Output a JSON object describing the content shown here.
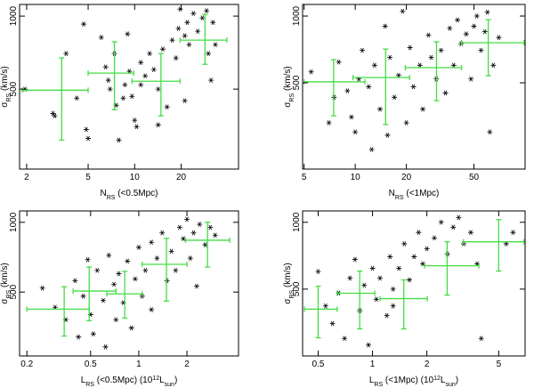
{
  "chart_data": [
    {
      "type": "scatter",
      "log_x": true,
      "log_y": true,
      "point_color": "#000000",
      "bin_color": "#44dd44",
      "xlabel": [
        {
          "text": "N"
        },
        {
          "text": "RS",
          "shift": "sub"
        },
        {
          "text": " (<0.5Mpc)"
        }
      ],
      "ylabel": [
        {
          "text": "σ"
        },
        {
          "text": "RS",
          "shift": "sub"
        },
        {
          "text": " (km/s)"
        }
      ],
      "xlim": [
        1.8,
        47
      ],
      "ylim": [
        234,
        1117
      ],
      "xticks": [
        2,
        5,
        10,
        20
      ],
      "yticks": [
        500,
        1000
      ],
      "x": [
        1.95,
        2.96,
        3.04,
        3.6,
        4.22,
        4.68,
        4.86,
        5.0,
        6.08,
        6.49,
        6.75,
        6.93,
        7.4,
        7.6,
        7.9,
        8.43,
        8.65,
        9.0,
        9.24,
        9.6,
        10.0,
        10.3,
        10.96,
        11.7,
        12.5,
        13.3,
        14.2,
        15.2,
        16.2,
        17.5,
        18.5,
        19.2,
        19.7,
        21.1,
        21.9,
        22.5,
        24.0,
        25.6,
        27.4,
        29.2,
        30.0,
        31.2,
        32.1,
        33.3,
        21.1,
        14.2,
        10.96
      ],
      "y": [
        500,
        397,
        388,
        701,
        459,
        927,
        341,
        313,
        817,
        617,
        544,
        500,
        701,
        429,
        308,
        459,
        521,
        844,
        592,
        467,
        372,
        350,
        644,
        567,
        701,
        602,
        356,
        731,
        422,
        796,
        672,
        889,
        1069,
        830,
        942,
        763,
        1026,
        866,
        983,
        1052,
        701,
        544,
        942,
        763,
        448,
        500,
        521
      ],
      "bins": {
        "x": [
          3.37,
          7.4,
          14.8,
          28.5
        ],
        "x_lo": [
          1.87,
          5.0,
          9.6,
          19.7
        ],
        "x_hi": [
          5.0,
          9.86,
          19.7,
          39.5
        ],
        "y": [
          495,
          582,
          539,
          796
        ],
        "y_lo": [
          308,
          411,
          388,
          633
        ],
        "y_hi": [
          672,
          783,
          701,
          1017
        ]
      }
    },
    {
      "type": "scatter",
      "log_x": true,
      "log_y": true,
      "point_color": "#000000",
      "bin_color": "#44dd44",
      "xlabel": [
        {
          "text": "N"
        },
        {
          "text": "RS",
          "shift": "sub"
        },
        {
          "text": " (<1Mpc)"
        }
      ],
      "ylabel": [
        {
          "text": "σ"
        },
        {
          "text": "RS",
          "shift": "sub"
        },
        {
          "text": " (km/s)"
        }
      ],
      "xlim": [
        4.9,
        100
      ],
      "ylim": [
        204,
        1128
      ],
      "xticks": [
        5,
        10,
        20,
        50
      ],
      "yticks": [
        500,
        1000
      ],
      "x": [
        5.5,
        7,
        7.5,
        8,
        9,
        9.5,
        10,
        10.5,
        11,
        12,
        12.5,
        13,
        14,
        15,
        15.5,
        16,
        17,
        18,
        19,
        20,
        21,
        22,
        24,
        25,
        27,
        28,
        30,
        32,
        34,
        36,
        38,
        40,
        42,
        45,
        48,
        50,
        52,
        55,
        58,
        60,
        62,
        65,
        70
      ],
      "y": [
        560,
        330,
        430,
        620,
        460,
        350,
        300,
        520,
        700,
        480,
        250,
        600,
        380,
        900,
        290,
        650,
        430,
        540,
        1050,
        330,
        720,
        480,
        600,
        380,
        820,
        650,
        520,
        700,
        450,
        880,
        600,
        960,
        750,
        830,
        520,
        900,
        1000,
        700,
        850,
        1040,
        300,
        600,
        800
      ],
      "bins": {
        "x": [
          7.46,
          15.1,
          30.1,
          60.7
        ],
        "x_lo": [
          5.0,
          9.7,
          19.7,
          42.2
        ],
        "x_hi": [
          11.4,
          20.9,
          42.2,
          98.6
        ],
        "y": [
          505,
          528,
          585,
          758
        ],
        "y_lo": [
          355,
          324,
          415,
          538
        ],
        "y_hi": [
          636,
          710,
          765,
          963
        ]
      }
    },
    {
      "type": "scatter",
      "log_x": true,
      "log_y": true,
      "point_color": "#000000",
      "bin_color": "#44dd44",
      "xlabel": [
        {
          "text": "L"
        },
        {
          "text": "RS",
          "shift": "sub"
        },
        {
          "text": " (<0.5Mpc) (10"
        },
        {
          "text": "12",
          "shift": "sup"
        },
        {
          "text": "L"
        },
        {
          "text": "sun",
          "shift": "sub"
        },
        {
          "text": ")"
        }
      ],
      "ylabel": [
        {
          "text": "σ"
        },
        {
          "text": "RS",
          "shift": "sub"
        },
        {
          "text": " (km/s)"
        }
      ],
      "xlim": [
        0.18,
        4.2
      ],
      "ylim": [
        265,
        1120
      ],
      "xticks": [
        0.2,
        0.5,
        1,
        2
      ],
      "yticks": [
        500,
        1000
      ],
      "x": [
        0.25,
        0.3,
        0.35,
        0.4,
        0.42,
        0.45,
        0.48,
        0.5,
        0.52,
        0.55,
        0.6,
        0.62,
        0.65,
        0.7,
        0.72,
        0.75,
        0.8,
        0.85,
        0.9,
        0.95,
        1.0,
        1.05,
        1.1,
        1.2,
        1.3,
        1.4,
        1.5,
        1.6,
        1.7,
        1.8,
        1.9,
        2.0,
        2.1,
        2.2,
        2.4,
        2.6,
        2.8,
        3.0,
        2.3,
        1.2
      ],
      "y": [
        520,
        430,
        380,
        560,
        320,
        480,
        690,
        400,
        330,
        620,
        460,
        290,
        720,
        540,
        380,
        600,
        450,
        680,
        350,
        570,
        780,
        480,
        620,
        820,
        700,
        900,
        560,
        750,
        620,
        950,
        850,
        1030,
        700,
        900,
        980,
        800,
        950,
        880,
        530,
        420
      ],
      "bins": {
        "x": [
          0.342,
          0.49,
          0.817,
          1.49,
          2.69
        ],
        "x_lo": [
          0.2,
          0.389,
          0.632,
          1.05,
          1.96
        ],
        "x_hi": [
          0.49,
          0.72,
          1.05,
          2.0,
          3.7
        ],
        "y": [
          422,
          505,
          491,
          659,
          837
        ],
        "y_lo": [
          323,
          376,
          386,
          457,
          641
        ],
        "y_hi": [
          527,
          641,
          614,
          853,
          1000
        ]
      }
    },
    {
      "type": "scatter",
      "log_x": true,
      "log_y": true,
      "point_color": "#000000",
      "bin_color": "#44dd44",
      "xlabel": [
        {
          "text": "L"
        },
        {
          "text": "RS",
          "shift": "sub"
        },
        {
          "text": " (<1Mpc) (10"
        },
        {
          "text": "12",
          "shift": "sup"
        },
        {
          "text": "L"
        },
        {
          "text": "sun",
          "shift": "sub"
        },
        {
          "text": ")"
        }
      ],
      "ylabel": [
        {
          "text": "σ"
        },
        {
          "text": "RS",
          "shift": "sub"
        },
        {
          "text": " (km/s)"
        }
      ],
      "xlim": [
        0.41,
        7
      ],
      "ylim": [
        250,
        1125
      ],
      "xticks": [
        0.5,
        1,
        2,
        5
      ],
      "yticks": [
        500,
        1000
      ],
      "x": [
        0.5,
        0.55,
        0.6,
        0.65,
        0.7,
        0.75,
        0.8,
        0.85,
        0.9,
        0.95,
        1.0,
        1.05,
        1.1,
        1.2,
        1.25,
        1.3,
        1.4,
        1.5,
        1.6,
        1.7,
        1.8,
        1.9,
        2.0,
        2.2,
        2.4,
        2.6,
        2.8,
        3.0,
        3.2,
        3.5,
        3.8,
        4.0,
        6.0,
        5.5,
        1.3
      ],
      "y": [
        600,
        420,
        350,
        480,
        300,
        560,
        680,
        400,
        520,
        280,
        620,
        450,
        560,
        380,
        700,
        500,
        620,
        800,
        550,
        700,
        900,
        650,
        760,
        850,
        1000,
        720,
        950,
        1050,
        800,
        900,
        650,
        300,
        900,
        800,
        420
      ],
      "bins": {
        "x": [
          0.5,
          0.849,
          1.49,
          2.59,
          5.0
        ],
        "x_lo": [
          0.42,
          0.637,
          1.1,
          1.94,
          3.19
        ],
        "x_hi": [
          0.637,
          1.03,
          2.01,
          3.88,
          6.9
        ],
        "y": [
          406,
          479,
          453,
          637,
          817
        ],
        "y_lo": [
          302,
          331,
          331,
          470,
          603
        ],
        "y_hi": [
          515,
          603,
          550,
          817,
          1028
        ]
      }
    }
  ]
}
